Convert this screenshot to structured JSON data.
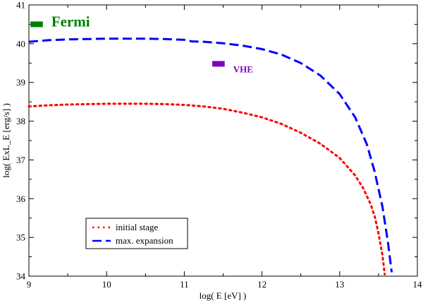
{
  "chart_data": {
    "type": "line",
    "title": "",
    "xlabel": "log( E [eV] )",
    "ylabel": "log( ExL_E [erg/s] )",
    "xlim": [
      9,
      14
    ],
    "ylim": [
      34,
      41
    ],
    "x_ticks": [
      9,
      10,
      11,
      12,
      13,
      14
    ],
    "y_ticks": [
      34,
      35,
      36,
      37,
      38,
      39,
      40,
      41
    ],
    "grid": false,
    "legend_position": "bottom-left",
    "series": [
      {
        "name": "initial stage",
        "style": "dotted",
        "color": "#ff0000",
        "points": [
          [
            9.0,
            38.38
          ],
          [
            9.25,
            38.41
          ],
          [
            9.5,
            38.43
          ],
          [
            9.75,
            38.44
          ],
          [
            10.0,
            38.45
          ],
          [
            10.25,
            38.45
          ],
          [
            10.5,
            38.45
          ],
          [
            10.75,
            38.44
          ],
          [
            11.0,
            38.42
          ],
          [
            11.25,
            38.38
          ],
          [
            11.5,
            38.32
          ],
          [
            11.75,
            38.22
          ],
          [
            12.0,
            38.1
          ],
          [
            12.25,
            37.93
          ],
          [
            12.5,
            37.7
          ],
          [
            12.75,
            37.42
          ],
          [
            13.0,
            37.05
          ],
          [
            13.2,
            36.6
          ],
          [
            13.3,
            36.28
          ],
          [
            13.4,
            35.85
          ],
          [
            13.45,
            35.55
          ],
          [
            13.5,
            35.1
          ],
          [
            13.55,
            34.55
          ],
          [
            13.58,
            34.05
          ]
        ]
      },
      {
        "name": "max. expansion",
        "style": "dashed",
        "color": "#0000ff",
        "points": [
          [
            9.0,
            40.05
          ],
          [
            9.25,
            40.09
          ],
          [
            9.5,
            40.11
          ],
          [
            9.75,
            40.12
          ],
          [
            10.0,
            40.13
          ],
          [
            10.25,
            40.13
          ],
          [
            10.5,
            40.13
          ],
          [
            10.75,
            40.12
          ],
          [
            11.0,
            40.1
          ],
          [
            11.1,
            40.06
          ],
          [
            11.25,
            40.05
          ],
          [
            11.5,
            40.01
          ],
          [
            11.75,
            39.95
          ],
          [
            12.0,
            39.86
          ],
          [
            12.25,
            39.72
          ],
          [
            12.5,
            39.5
          ],
          [
            12.75,
            39.18
          ],
          [
            13.0,
            38.7
          ],
          [
            13.2,
            38.1
          ],
          [
            13.35,
            37.4
          ],
          [
            13.45,
            36.7
          ],
          [
            13.55,
            35.8
          ],
          [
            13.62,
            34.9
          ],
          [
            13.67,
            34.1
          ]
        ]
      }
    ],
    "markers": [
      {
        "name": "Fermi",
        "label": "Fermi",
        "color": "#008000",
        "x_range": [
          9.02,
          9.18
        ],
        "y": 40.5
      },
      {
        "name": "VHE",
        "label": "VHE",
        "color": "#8000c0",
        "x_range": [
          11.36,
          11.52
        ],
        "y": 39.48
      }
    ],
    "legend": [
      "initial stage",
      "max. expansion"
    ]
  }
}
